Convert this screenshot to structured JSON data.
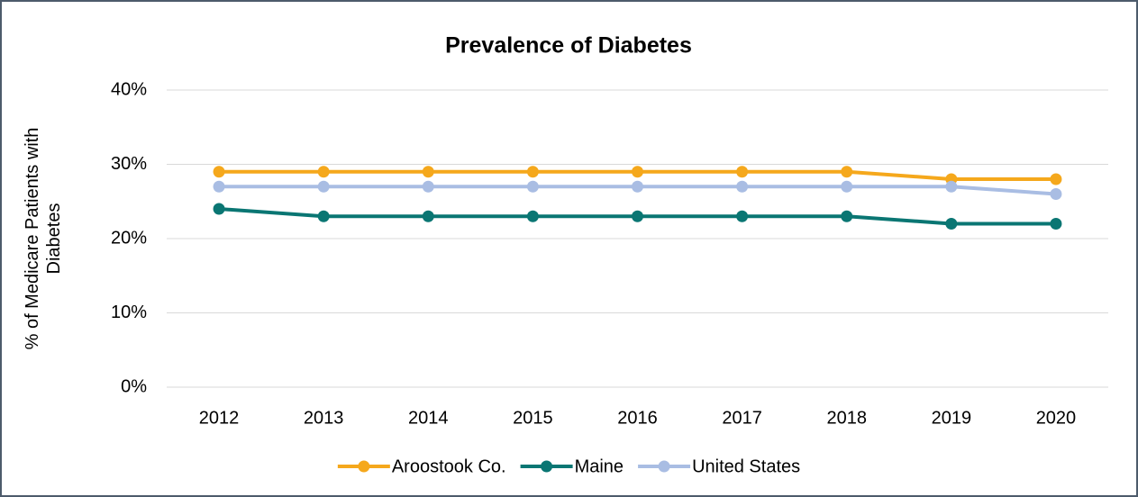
{
  "chart_data": {
    "type": "line",
    "title": "Prevalence of Diabetes",
    "ylabel": "% of Medicare Patients with Diabetes",
    "categories": [
      "2012",
      "2013",
      "2014",
      "2015",
      "2016",
      "2017",
      "2018",
      "2019",
      "2020"
    ],
    "series": [
      {
        "name": "Aroostook Co.",
        "color": "#f5a81c",
        "values": [
          29,
          29,
          29,
          29,
          29,
          29,
          29,
          28,
          28
        ]
      },
      {
        "name": "Maine",
        "color": "#0a7673",
        "values": [
          24,
          23,
          23,
          23,
          23,
          23,
          23,
          22,
          22
        ]
      },
      {
        "name": "United States",
        "color": "#a9bde3",
        "values": [
          27,
          27,
          27,
          27,
          27,
          27,
          27,
          27,
          26
        ]
      }
    ],
    "ylim": [
      0,
      40
    ],
    "yticks": [
      {
        "value": 0,
        "label": "0%"
      },
      {
        "value": 10,
        "label": "10%"
      },
      {
        "value": 20,
        "label": "20%"
      },
      {
        "value": 30,
        "label": "30%"
      },
      {
        "value": 40,
        "label": "40%"
      }
    ],
    "grid": true,
    "legend": "bottom"
  }
}
